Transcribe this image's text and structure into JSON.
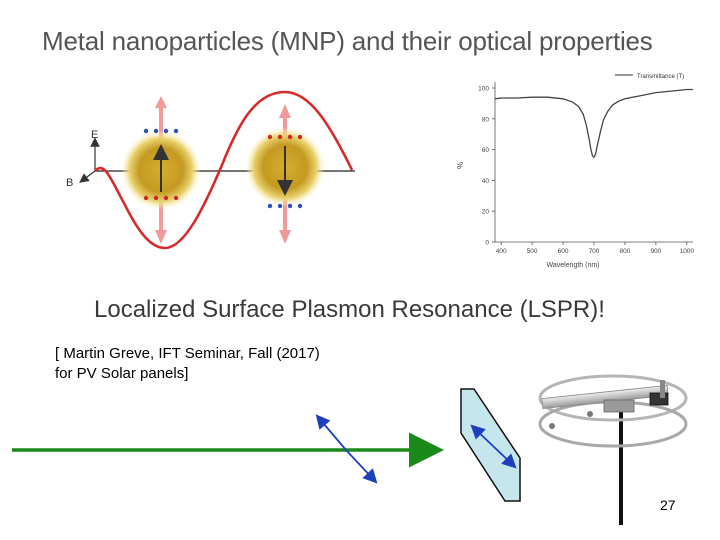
{
  "slide": {
    "title": "Metal nanoparticles (MNP) and their optical properties",
    "subtitle": "Localized Surface Plasmon Resonance (LSPR)!",
    "citation_line1": "[ Martin Greve,  IFT Seminar, Fall (2017)",
    "citation_line2": "for PV Solar panels]",
    "page_number": "27"
  },
  "diagram": {
    "e_label": "E",
    "b_label": "B"
  },
  "chart_data": {
    "type": "line",
    "legend": "Transmittance (T)",
    "legend_position": "top-right",
    "xlabel": "Wavelength (nm)",
    "ylabel": "%",
    "xlim": [
      380,
      1020
    ],
    "ylim": [
      0,
      100
    ],
    "xticks": [
      400,
      500,
      600,
      700,
      800,
      900,
      1000
    ],
    "yticks": [
      0,
      20,
      40,
      60,
      80,
      100
    ],
    "grid": false,
    "series": [
      {
        "name": "Transmittance (T)",
        "x": [
          380,
          400,
          450,
          500,
          550,
          600,
          630,
          650,
          665,
          675,
          685,
          690,
          695,
          700,
          705,
          710,
          720,
          730,
          745,
          760,
          780,
          800,
          850,
          900,
          950,
          1000,
          1020
        ],
        "values": [
          93,
          93.5,
          93.5,
          94,
          94,
          93,
          91,
          88,
          83,
          76,
          66,
          60,
          56,
          55,
          57,
          62,
          71,
          79,
          85,
          89,
          91.5,
          93,
          95,
          97,
          98,
          99,
          99
        ]
      }
    ]
  }
}
